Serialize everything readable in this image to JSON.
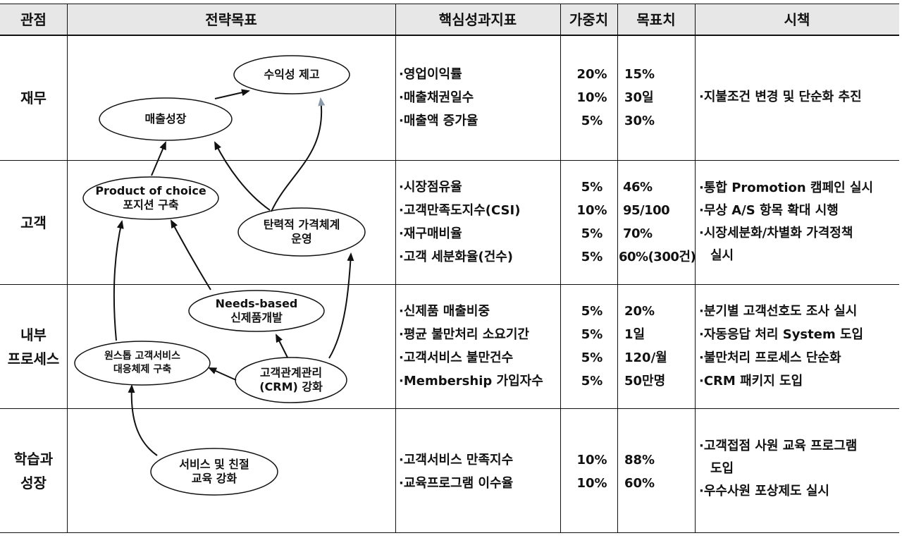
{
  "headers": {
    "perspective": "관점",
    "objectives": "전략목표",
    "kpi": "핵심성과지표",
    "weight": "가중치",
    "target": "목표치",
    "initiatives": "시책"
  },
  "perspectives": {
    "finance": "재무",
    "customer": "고객",
    "internal_line1": "내부",
    "internal_line2": "프로세스",
    "learning_line1": "학습과",
    "learning_line2": "성장"
  },
  "objectives": {
    "profitability": "수익성 제고",
    "sales_growth": "매출성장",
    "product_choice_line1": "Product of choice",
    "product_choice_line2": "포지션 구축",
    "flexible_pricing_line1": "탄력적 가격체계",
    "flexible_pricing_line2": "운영",
    "needs_based_line1": "Needs-based",
    "needs_based_line2": "신제품개발",
    "one_stop_line1": "원스톱 고객서비스",
    "one_stop_line2": "대응체제 구축",
    "crm_line1": "고객관계관리",
    "crm_line2": "(CRM) 강화",
    "service_edu_line1": "서비스 및 친절",
    "service_edu_line2": "교육 강화"
  },
  "rows": {
    "finance": {
      "kpis": [
        "·영업이익률",
        "·매출채권일수",
        "·매출액 증가율"
      ],
      "weights": [
        "20%",
        "10%",
        "5%"
      ],
      "targets": [
        "15%",
        "30일",
        "30%"
      ],
      "initiatives": [
        "·지불조건 변경 및 단순화 추진"
      ]
    },
    "customer": {
      "kpis": [
        "·시장점유율",
        "·고객만족도지수(CSI)",
        "·재구매비율",
        "·고객 세분화율(건수)"
      ],
      "weights": [
        "5%",
        "10%",
        "5%",
        "5%"
      ],
      "targets": [
        "46%",
        "95/100",
        "70%",
        "60%(300건)"
      ],
      "initiatives": [
        "·통합 Promotion 캠페인 실시",
        "·무상 A/S 항목 확대 시행",
        "·시장세분화/차별화 가격정책",
        "실시"
      ]
    },
    "internal": {
      "kpis": [
        "·신제품 매출비중",
        "·평균 불만처리 소요기간",
        "·고객서비스 불만건수",
        "·Membership 가입자수"
      ],
      "weights": [
        "5%",
        "5%",
        "5%",
        "5%"
      ],
      "targets": [
        "20%",
        "1일",
        "120/월",
        "50만명"
      ],
      "initiatives": [
        "·분기별 고객선호도 조사 실시",
        "·자동응답 처리 System 도입",
        "·불만처리 프로세스 단순화",
        "·CRM 패키지 도입"
      ]
    },
    "learning": {
      "kpis": [
        "·고객서비스 만족지수",
        "·교육프로그램 이수율"
      ],
      "weights": [
        "10%",
        "10%"
      ],
      "targets": [
        "88%",
        "60%"
      ],
      "initiatives": [
        "·고객접점 사원 교육 프로그램",
        "도입",
        "·우수사원 포상제도 실시"
      ]
    }
  }
}
